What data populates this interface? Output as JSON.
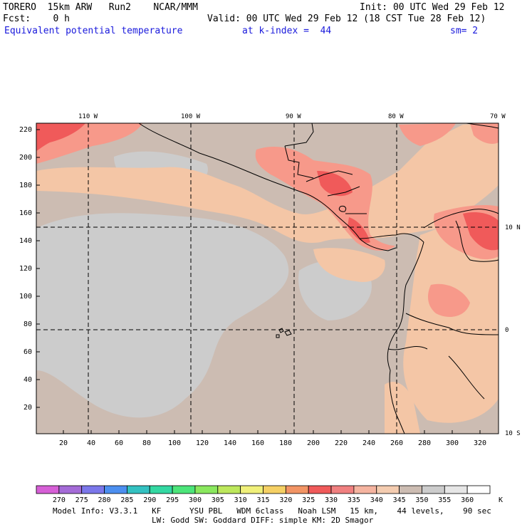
{
  "header": {
    "model": "TORERO  15km ARW   Run2    NCAR/MMM",
    "init": "Init: 00 UTC Wed 29 Feb 12",
    "fcst": "Fcst:    0 h",
    "valid": "Valid: 00 UTC Wed 29 Feb 12 (18 CST Tue 28 Feb 12)",
    "field": "Equivalent potential temperature",
    "level": "at k-index =  44",
    "smooth": "sm= 2"
  },
  "map": {
    "top_lon_labels": [
      "110 W",
      "100 W",
      "90 W",
      "80 W",
      "70 W"
    ],
    "right_lat_labels": [
      "10 N",
      "0",
      "10 S"
    ],
    "y_grid_labels": [
      "220",
      "200",
      "180",
      "160",
      "140",
      "120",
      "100",
      "80",
      "60",
      "40",
      "20"
    ],
    "x_grid_labels": [
      "20",
      "40",
      "60",
      "80",
      "100",
      "120",
      "140",
      "160",
      "180",
      "200",
      "220",
      "240",
      "260",
      "280",
      "300",
      "320"
    ],
    "colors": {
      "land_border": "#000000",
      "grid_dash": "#000000",
      "c340": "#f4c6a6",
      "c345": "#ccbcb2",
      "c350": "#cccccc",
      "c335": "#f7998a",
      "c330": "#f05a5a",
      "c325": "#f4765a"
    }
  },
  "colorbar": {
    "values": [
      "270",
      "275",
      "280",
      "285",
      "290",
      "295",
      "300",
      "305",
      "310",
      "315",
      "320",
      "325",
      "330",
      "335",
      "340",
      "345",
      "350",
      "355",
      "360"
    ],
    "unit": "K",
    "colors": [
      "#d65fd6",
      "#a46bd7",
      "#7b77ea",
      "#4c8ff0",
      "#33c1c1",
      "#33d8a2",
      "#4ce57a",
      "#8ae85e",
      "#bde85c",
      "#f0f07a",
      "#f5d064",
      "#f29464",
      "#f05a5a",
      "#f08080",
      "#f5b4a0",
      "#f4ccb0",
      "#ccbcb2",
      "#cccccc",
      "#e6e6e6",
      "#ffffff"
    ]
  },
  "footer": {
    "line1": "Model Info: V3.3.1   KF      YSU PBL   WDM 6class   Noah LSM   15 km,    44 levels,    90 sec",
    "line2": "LW: Godd SW: Goddard DIFF: simple KM: 2D Smagor"
  }
}
